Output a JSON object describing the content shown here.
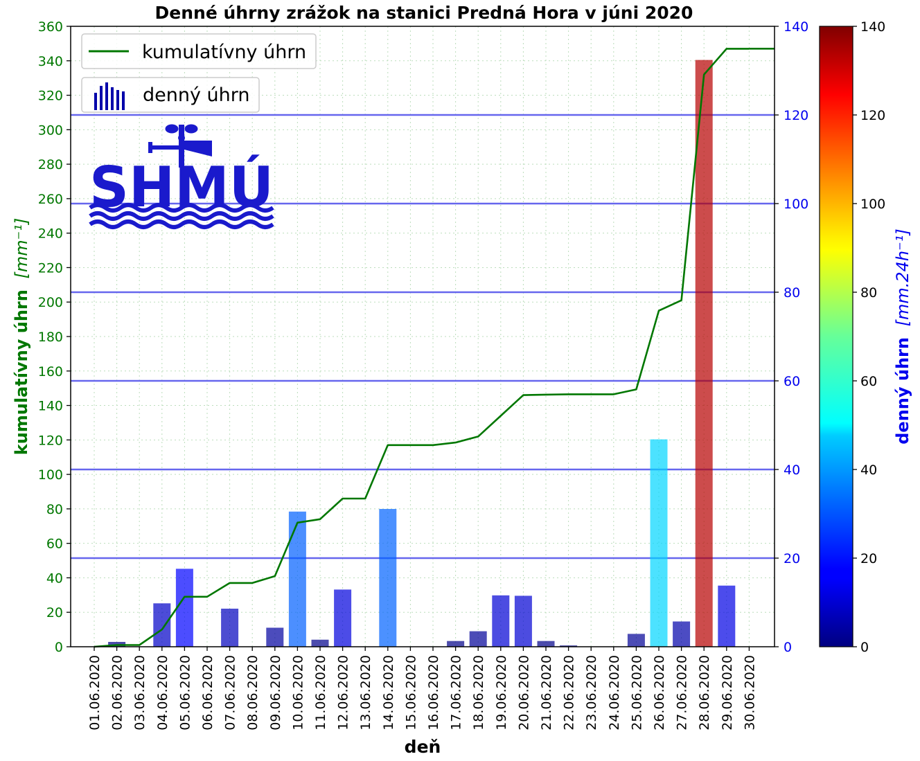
{
  "chart_data": {
    "type": "bar",
    "title": "Denné úhrny zrážok na stanici Predná Hora v júni 2020",
    "xlabel": "deň",
    "ylabel_left_main": "kumulatívny úhrn",
    "ylabel_left_unit": "[mm⁻¹]",
    "ylabel_right_main": "denný úhrn",
    "ylabel_right_unit": "[mm.24h⁻¹]",
    "categories": [
      "01.06.2020",
      "02.06.2020",
      "03.06.2020",
      "04.06.2020",
      "05.06.2020",
      "06.06.2020",
      "07.06.2020",
      "08.06.2020",
      "09.06.2020",
      "10.06.2020",
      "11.06.2020",
      "12.06.2020",
      "13.06.2020",
      "14.06.2020",
      "15.06.2020",
      "16.06.2020",
      "17.06.2020",
      "18.06.2020",
      "19.06.2020",
      "20.06.2020",
      "21.06.2020",
      "22.06.2020",
      "23.06.2020",
      "24.06.2020",
      "25.06.2020",
      "26.06.2020",
      "27.06.2020",
      "28.06.2020",
      "29.06.2020",
      "30.06.2020"
    ],
    "series": [
      {
        "name": "denný úhrn",
        "axis": "right",
        "kind": "bar",
        "values": [
          0,
          1.1,
          0,
          9.8,
          17.6,
          0,
          8.6,
          0,
          4.3,
          30.5,
          1.6,
          12.9,
          0,
          31.1,
          0,
          0,
          1.3,
          3.5,
          11.6,
          11.5,
          1.3,
          0.3,
          0,
          0,
          2.9,
          46.8,
          5.7,
          132.4,
          13.8,
          0
        ]
      },
      {
        "name": "kumulatívny úhrn",
        "axis": "left",
        "kind": "line",
        "color": "#007700",
        "values": [
          0,
          1,
          1,
          10,
          29,
          29,
          37,
          37,
          41,
          72,
          74,
          86,
          86,
          117,
          117,
          117,
          118.5,
          122,
          134,
          146,
          146.3,
          146.5,
          146.5,
          146.5,
          149.3,
          195,
          201,
          332,
          347,
          347
        ]
      }
    ],
    "ylim_left": [
      0,
      360
    ],
    "yticks_left": [
      0,
      20,
      40,
      60,
      80,
      100,
      120,
      140,
      160,
      180,
      200,
      220,
      240,
      260,
      280,
      300,
      320,
      340,
      360
    ],
    "ylim_right": [
      0,
      140
    ],
    "yticks_right": [
      0,
      20,
      40,
      60,
      80,
      100,
      120,
      140
    ],
    "colorbar_ticks": [
      0,
      20,
      40,
      60,
      80,
      100,
      120,
      140
    ],
    "colorbar_range": [
      0,
      140
    ],
    "colormap": "jet",
    "grid": true,
    "legend_placement": "upper-left",
    "colors": {
      "left_axis": "#007700",
      "right_axis": "#0000ee",
      "hline": "#6666ee",
      "grid": "#bbddbb"
    },
    "logo_text": "SHMÚ"
  }
}
